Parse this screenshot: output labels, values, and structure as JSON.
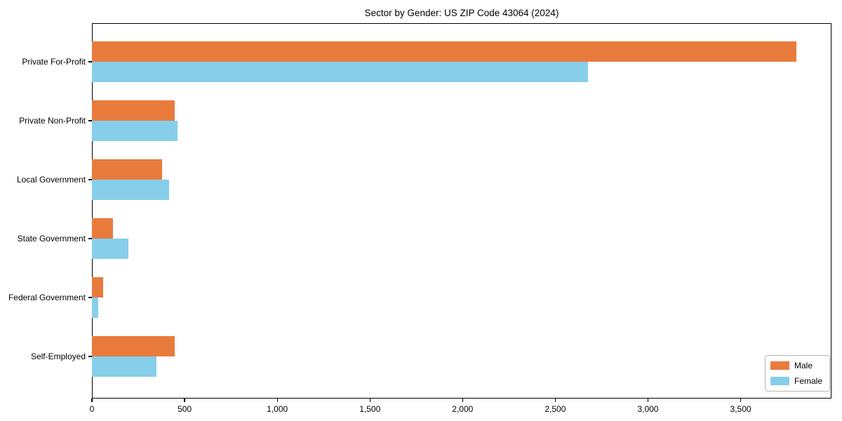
{
  "chart_data": {
    "type": "bar",
    "orientation": "horizontal",
    "title": "Sector by Gender: US ZIP Code 43064 (2024)",
    "categories": [
      "Private For-Profit",
      "Private Non-Profit",
      "Local Government",
      "State Government",
      "Federal Government",
      "Self-Employed"
    ],
    "series": [
      {
        "name": "Male",
        "color": "#E87B3C",
        "values": [
          3800,
          445,
          380,
          115,
          60,
          445
        ]
      },
      {
        "name": "Female",
        "color": "#87CEEB",
        "values": [
          2675,
          460,
          415,
          198,
          35,
          350
        ]
      }
    ],
    "xlabel": "",
    "ylabel": "",
    "xlim": [
      0,
      3990
    ],
    "xticks": [
      {
        "value": 0,
        "label": "0"
      },
      {
        "value": 500,
        "label": "500"
      },
      {
        "value": 1000,
        "label": "1,000"
      },
      {
        "value": 1500,
        "label": "1,500"
      },
      {
        "value": 2000,
        "label": "2,000"
      },
      {
        "value": 2500,
        "label": "2,500"
      },
      {
        "value": 3000,
        "label": "3,000"
      },
      {
        "value": 3500,
        "label": "3,500"
      }
    ],
    "grid": false,
    "legend_position": "lower right",
    "axis_color": "#000000",
    "background_color": "#ffffff"
  }
}
